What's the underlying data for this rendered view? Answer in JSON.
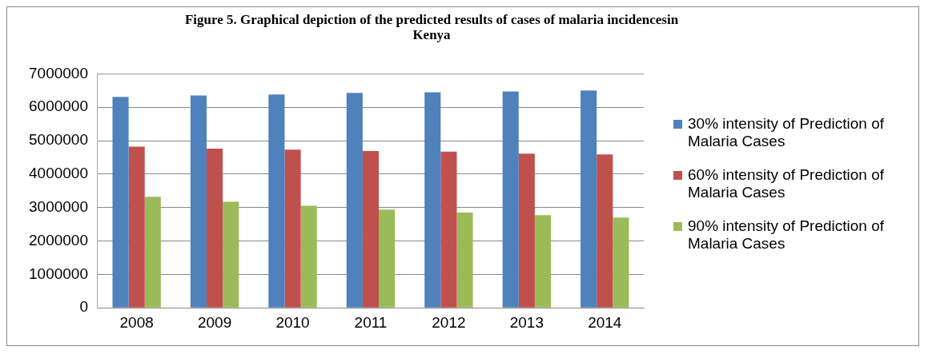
{
  "chart_data": {
    "type": "bar",
    "title": "Figure 5. Graphical depiction of the predicted results of cases of malaria incidencesin Kenya",
    "categories": [
      "2008",
      "2009",
      "2010",
      "2011",
      "2012",
      "2013",
      "2014"
    ],
    "series": [
      {
        "name": "30% intensity of Prediction of  Malaria Cases",
        "color": "#4f81bd",
        "values": [
          6310000,
          6355000,
          6380000,
          6430000,
          6450000,
          6470000,
          6500000
        ]
      },
      {
        "name": "60% intensity of Prediction of  Malaria Cases",
        "color": "#c0504d",
        "values": [
          4820000,
          4760000,
          4730000,
          4690000,
          4670000,
          4610000,
          4590000
        ]
      },
      {
        "name": "90% intensity of Prediction of Malaria Cases",
        "color": "#9bbb59",
        "values": [
          3320000,
          3170000,
          3050000,
          2940000,
          2850000,
          2770000,
          2700000
        ]
      }
    ],
    "ylim": [
      0,
      7000000
    ],
    "yticks": [
      0,
      1000000,
      2000000,
      3000000,
      4000000,
      5000000,
      6000000,
      7000000
    ],
    "grid": "y",
    "legend": "right"
  }
}
